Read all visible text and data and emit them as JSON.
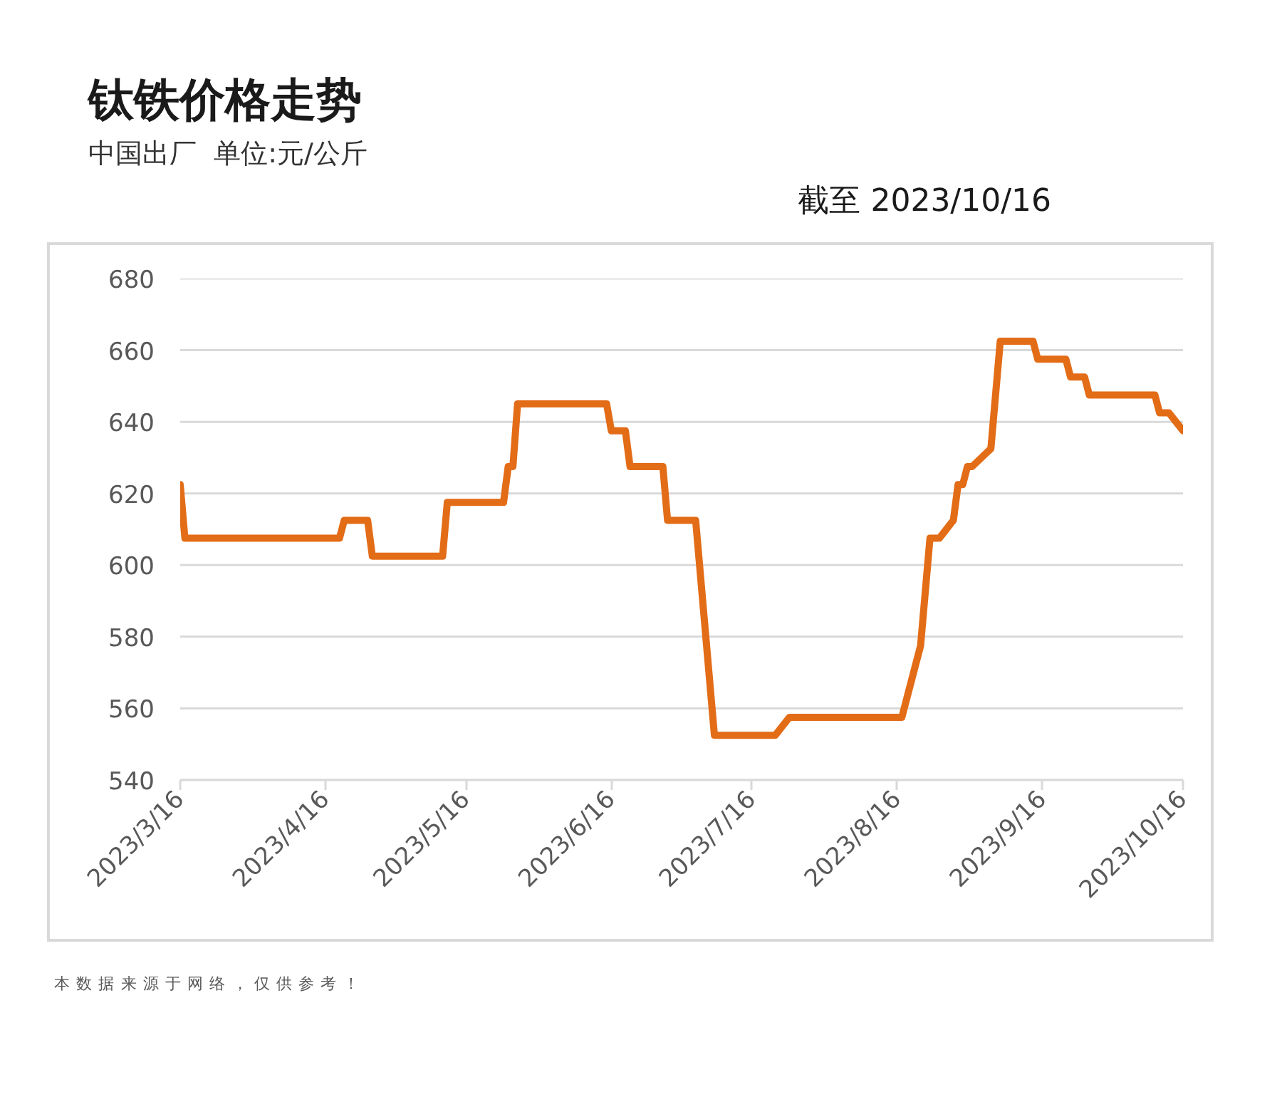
{
  "chart_data": {
    "type": "line",
    "title": "钛铁价格走势",
    "subtitle": "中国出厂  单位:元/公斤",
    "annotations": [
      "截至 2023/10/16",
      "本数据来源于网络，仅供参考！"
    ],
    "x": [
      "2023-03-16",
      "2023-03-17",
      "2023-04-19",
      "2023-04-20",
      "2023-04-25",
      "2023-04-26",
      "2023-05-11",
      "2023-05-12",
      "2023-05-24",
      "2023-05-25",
      "2023-05-26",
      "2023-05-27",
      "2023-06-15",
      "2023-06-16",
      "2023-06-19",
      "2023-06-20",
      "2023-06-27",
      "2023-06-28",
      "2023-07-04",
      "2023-07-08",
      "2023-07-21",
      "2023-07-24",
      "2023-08-17",
      "2023-08-21",
      "2023-08-23",
      "2023-08-25",
      "2023-08-28",
      "2023-08-29",
      "2023-08-30",
      "2023-08-31",
      "2023-09-01",
      "2023-09-05",
      "2023-09-07",
      "2023-09-14",
      "2023-09-15",
      "2023-09-21",
      "2023-09-22",
      "2023-09-25",
      "2023-09-26",
      "2023-10-10",
      "2023-10-11",
      "2023-10-13",
      "2023-10-16"
    ],
    "series": [
      {
        "color": "#e36c17",
        "values": [
          622.5,
          607.5,
          607.5,
          612.5,
          612.5,
          602.5,
          602.5,
          617.5,
          617.5,
          627.5,
          627.5,
          645,
          645,
          637.5,
          637.5,
          627.5,
          627.5,
          612.5,
          612.5,
          552.5,
          552.5,
          557.5,
          557.5,
          577.5,
          607.5,
          607.5,
          612.5,
          622.5,
          622.5,
          627.5,
          627.5,
          632.5,
          662.5,
          662.5,
          657.5,
          657.5,
          652.5,
          652.5,
          647.5,
          647.5,
          642.5,
          642.5,
          637.5
        ]
      }
    ],
    "xlim": [
      "2023-03-16",
      "2023-10-16"
    ],
    "xticks": [
      {
        "value": "2023-03-16",
        "label": "2023/3/16"
      },
      {
        "value": "2023-04-16",
        "label": "2023/4/16"
      },
      {
        "value": "2023-05-16",
        "label": "2023/5/16"
      },
      {
        "value": "2023-06-16",
        "label": "2023/6/16"
      },
      {
        "value": "2023-07-16",
        "label": "2023/7/16"
      },
      {
        "value": "2023-08-16",
        "label": "2023/8/16"
      },
      {
        "value": "2023-09-16",
        "label": "2023/9/16"
      },
      {
        "value": "2023-10-16",
        "label": "2023/10/16"
      }
    ],
    "ylim": [
      540,
      680
    ],
    "yticks": [
      540,
      560,
      580,
      600,
      620,
      640,
      660,
      680
    ],
    "grid": "y",
    "line_style": "solid"
  }
}
